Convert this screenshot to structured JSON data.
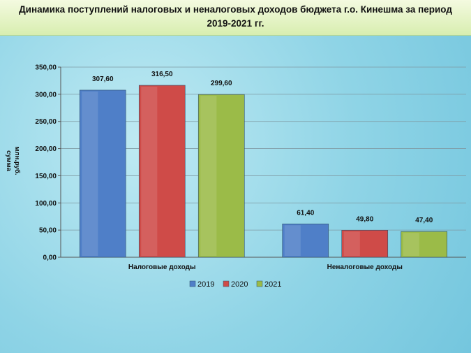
{
  "chart_data": {
    "type": "bar",
    "title_line1": "Динамика поступлений налоговых и неналоговых доходов бюджета г.о. Кинешма за период",
    "title_line2": "2019-2021 гг.",
    "ylabel_line1": "сумма",
    "ylabel_line2": "млн.руб.",
    "categories": [
      "Налоговые доходы",
      "Неналоговые доходы"
    ],
    "series": [
      {
        "name": "2019",
        "values": [
          307.6,
          61.4
        ],
        "labels": [
          "307,60",
          "61,40"
        ],
        "color": "#4f7fc8"
      },
      {
        "name": "2020",
        "values": [
          316.5,
          49.8
        ],
        "labels": [
          "316,50",
          "49,80"
        ],
        "color": "#cf4b48"
      },
      {
        "name": "2021",
        "values": [
          299.6,
          47.4
        ],
        "labels": [
          "299,60",
          "47,40"
        ],
        "color": "#9bbb48"
      }
    ],
    "ylim": [
      0,
      350
    ],
    "yticks": [
      0,
      50,
      100,
      150,
      200,
      250,
      300,
      350
    ],
    "ytick_labels": [
      "0,00",
      "50,00",
      "100,00",
      "150,00",
      "200,00",
      "250,00",
      "300,00",
      "350,00"
    ],
    "grid": true,
    "legend": "bottom"
  }
}
